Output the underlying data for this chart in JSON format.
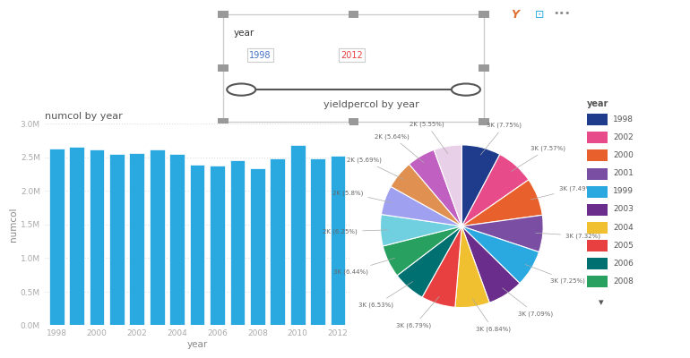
{
  "bar_years": [
    1998,
    1999,
    2000,
    2001,
    2002,
    2003,
    2004,
    2005,
    2006,
    2007,
    2008,
    2009,
    2010,
    2011,
    2012
  ],
  "bar_values": [
    2630000,
    2650000,
    2610000,
    2555000,
    2565000,
    2610000,
    2555000,
    2390000,
    2370000,
    2450000,
    2330000,
    2480000,
    2680000,
    2480000,
    2520000
  ],
  "bar_color": "#29a9e0",
  "bar_title": "numcol by year",
  "bar_xlabel": "year",
  "bar_ylabel": "numcol",
  "bar_ylim": [
    0,
    3000000
  ],
  "bar_yticks": [
    0,
    500000,
    1000000,
    1500000,
    2000000,
    2500000,
    3000000
  ],
  "bar_ytick_labels": [
    "0.0M",
    "0.5M",
    "1.0M",
    "1.5M",
    "2.0M",
    "2.5M",
    "3.0M"
  ],
  "bar_xtick_years": [
    1998,
    2000,
    2002,
    2004,
    2006,
    2008,
    2010,
    2012
  ],
  "pie_title": "yieldpercol by year",
  "pie_labels": [
    "3K (7.75%)",
    "3K (7.57%)",
    "3K (7.49%)",
    "3K (7.32%)",
    "3K (7.25%)",
    "3K (7.09%)",
    "3K (6.84%)",
    "3K (6.79%)",
    "3K (6.53%)",
    "3K (6.44%)",
    "2K (6.25%)",
    "2K (5.8%)",
    "2K (5.69%)",
    "2K (5.64%)",
    "2K (5.55%)"
  ],
  "pie_sizes": [
    7.75,
    7.57,
    7.49,
    7.32,
    7.25,
    7.09,
    6.84,
    6.79,
    6.53,
    6.44,
    6.25,
    5.8,
    5.69,
    5.64,
    5.55
  ],
  "pie_colors": [
    "#1f3b8c",
    "#e84b8a",
    "#e8612c",
    "#7a4fa3",
    "#29a9e0",
    "#6b2d8b",
    "#f0c030",
    "#e84040",
    "#007070",
    "#28a060",
    "#70d0e0",
    "#a0a0f0",
    "#e09050",
    "#c060c0",
    "#e8d0e8"
  ],
  "pie_legend_years": [
    "1998",
    "2002",
    "2000",
    "2001",
    "1999",
    "2003",
    "2004",
    "2005",
    "2006",
    "2008"
  ],
  "pie_legend_colors": [
    "#1f3b8c",
    "#e84b8a",
    "#e8612c",
    "#7a4fa3",
    "#29a9e0",
    "#6b2d8b",
    "#f0c030",
    "#e84040",
    "#007070",
    "#28a060"
  ],
  "slicer_title": "year",
  "slicer_min": "1998",
  "slicer_max": "2012",
  "bg_color": "#ffffff",
  "text_color": "#555555",
  "title_color": "#555555",
  "axis_label_color": "#888888",
  "tick_color": "#aaaaaa",
  "grid_color": "#dddddd"
}
